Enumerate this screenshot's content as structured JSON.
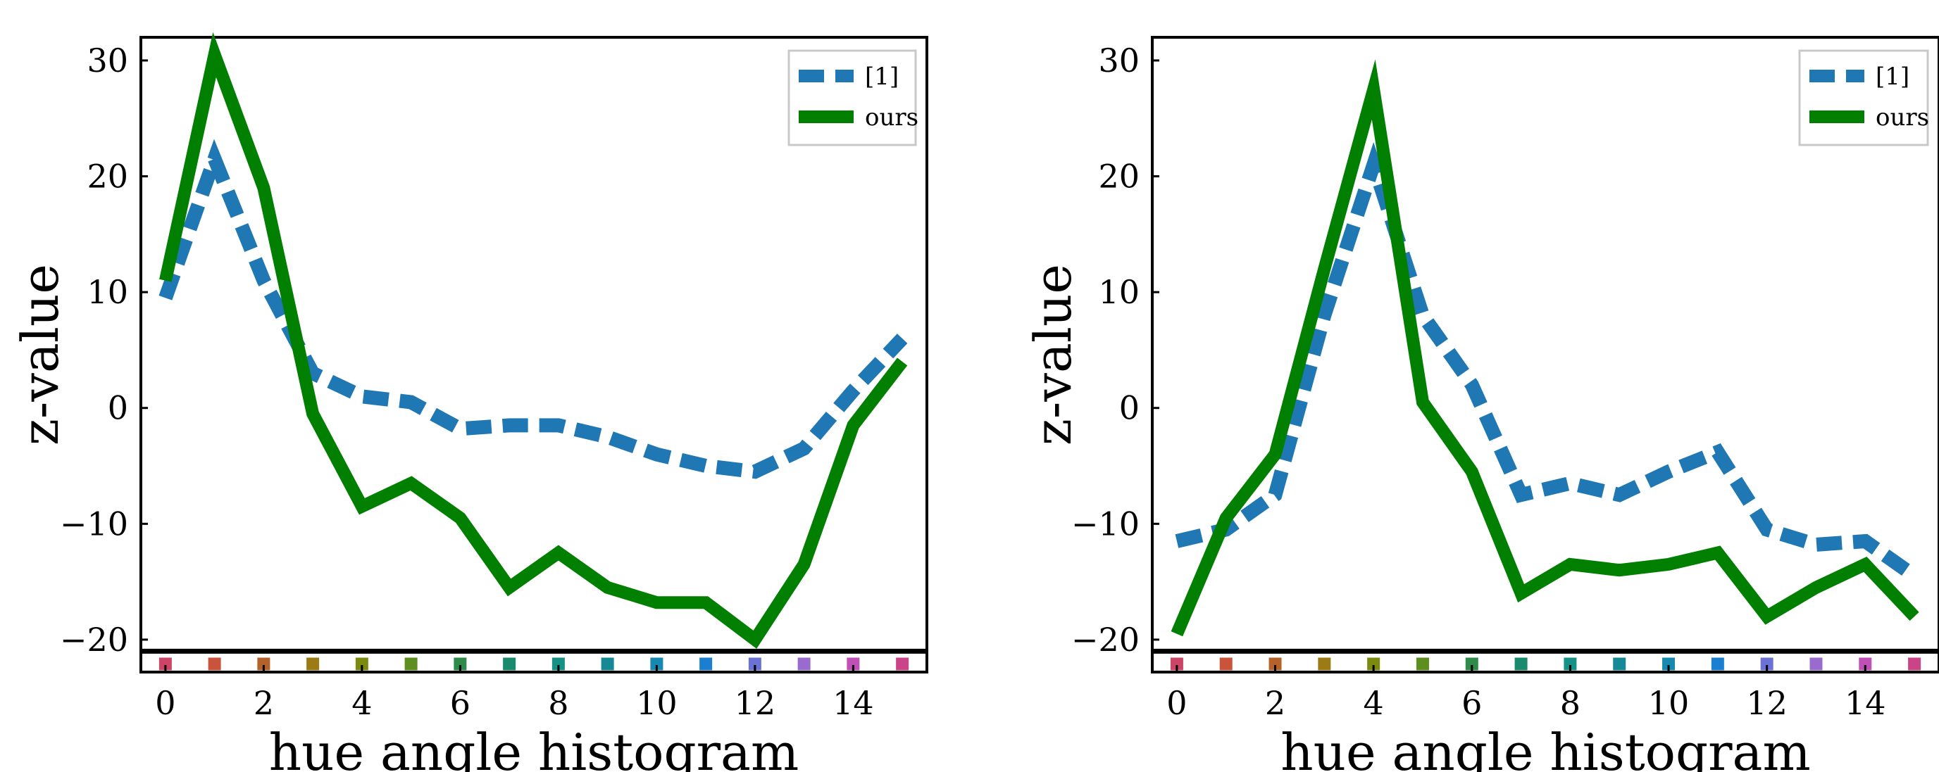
{
  "chart_data": [
    {
      "type": "line",
      "xlabel": "hue angle histogram",
      "ylabel": "z-value",
      "xlim": [
        -0.5,
        15.5
      ],
      "ylim": [
        -22.8,
        32.0
      ],
      "xticks": [
        0,
        2,
        4,
        6,
        8,
        10,
        12,
        14
      ],
      "yticks": [
        -20,
        -10,
        0,
        10,
        20,
        30
      ],
      "xticklabels": [
        "0",
        "2",
        "4",
        "6",
        "8",
        "10",
        "12",
        "14"
      ],
      "yticklabels": [
        "−20",
        "−10",
        "0",
        "10",
        "20",
        "30"
      ],
      "legend_position": "upper right",
      "grid": false,
      "x": [
        0,
        1,
        2,
        3,
        4,
        5,
        6,
        7,
        8,
        9,
        10,
        11,
        12,
        13,
        14,
        15
      ],
      "series": [
        {
          "name": "[1]",
          "style": "dashed",
          "color": "#1f77b4",
          "values": [
            9.5,
            21.5,
            11.0,
            3.0,
            1.0,
            0.5,
            -1.8,
            -1.5,
            -1.5,
            -2.5,
            -4.0,
            -5.0,
            -5.5,
            -3.5,
            1.5,
            6.0
          ]
        },
        {
          "name": "ours",
          "style": "solid",
          "color": "#007f00",
          "values": [
            11.0,
            30.5,
            19.0,
            -0.5,
            -8.5,
            -6.5,
            -9.5,
            -15.5,
            -12.5,
            -15.5,
            -16.8,
            -16.8,
            -20.0,
            -13.5,
            -1.5,
            4.0
          ]
        }
      ],
      "marker_colors": [
        "#cc4466",
        "#c9533b",
        "#b5622a",
        "#9c7a14",
        "#7d8a10",
        "#5c8f1e",
        "#2e8b4a",
        "#1a8a6e",
        "#169186",
        "#158a96",
        "#1788b0",
        "#1a7fd0",
        "#6a72d6",
        "#9a6bcf",
        "#c050b8",
        "#cc4488"
      ]
    },
    {
      "type": "line",
      "xlabel": "hue angle histogram",
      "ylabel": "z-value",
      "xlim": [
        -0.5,
        15.5
      ],
      "ylim": [
        -22.8,
        32.0
      ],
      "xticks": [
        0,
        2,
        4,
        6,
        8,
        10,
        12,
        14
      ],
      "yticks": [
        -20,
        -10,
        0,
        10,
        20,
        30
      ],
      "xticklabels": [
        "0",
        "2",
        "4",
        "6",
        "8",
        "10",
        "12",
        "14"
      ],
      "yticklabels": [
        "−20",
        "−10",
        "0",
        "10",
        "20",
        "30"
      ],
      "legend_position": "upper right",
      "grid": false,
      "x": [
        0,
        1,
        2,
        3,
        4,
        5,
        6,
        7,
        8,
        9,
        10,
        11,
        12,
        13,
        14,
        15
      ],
      "series": [
        {
          "name": "[1]",
          "style": "dashed",
          "color": "#1f77b4",
          "values": [
            -11.5,
            -10.5,
            -7.5,
            8.0,
            21.0,
            8.0,
            2.0,
            -7.5,
            -6.5,
            -7.5,
            -5.5,
            -3.8,
            -10.5,
            -11.8,
            -11.5,
            -14.5
          ]
        },
        {
          "name": "ours",
          "style": "solid",
          "color": "#007f00",
          "values": [
            -19.5,
            -9.5,
            -4.0,
            12.0,
            27.5,
            0.5,
            -5.5,
            -16.0,
            -13.5,
            -14.0,
            -13.5,
            -12.5,
            -18.0,
            -15.5,
            -13.5,
            -18.0
          ]
        }
      ],
      "marker_colors": [
        "#cc4466",
        "#c9533b",
        "#b5622a",
        "#9c7a14",
        "#7d8a10",
        "#5c8f1e",
        "#2e8b4a",
        "#1a8a6e",
        "#169186",
        "#158a96",
        "#1788b0",
        "#1a7fd0",
        "#6a72d6",
        "#9a6bcf",
        "#c050b8",
        "#cc4488"
      ]
    }
  ]
}
